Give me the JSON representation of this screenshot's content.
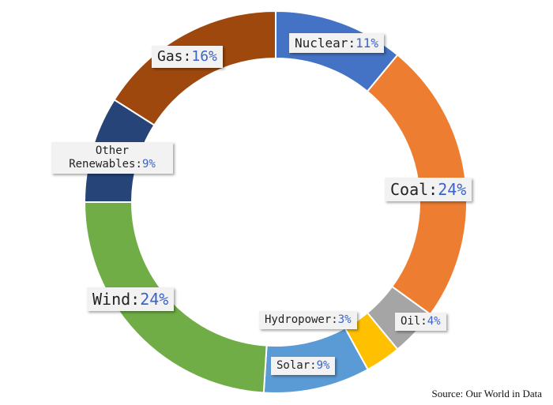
{
  "chart_data": {
    "type": "donut",
    "categories": [
      "Nuclear",
      "Coal",
      "Oil",
      "Hydropower",
      "Solar",
      "Wind",
      "Other Renewables",
      "Gas"
    ],
    "values": [
      11,
      24,
      4,
      3,
      9,
      24,
      9,
      16
    ],
    "value_labels": [
      "11%",
      "24%",
      "4%",
      "3%",
      "9%",
      "24%",
      "9%",
      "16%"
    ],
    "colors": [
      "#4472c4",
      "#ed7d31",
      "#a5a5a5",
      "#ffc000",
      "#5b9bd5",
      "#70ad47",
      "#264478",
      "#9e480e"
    ],
    "source": "Source: Our World in Data"
  }
}
